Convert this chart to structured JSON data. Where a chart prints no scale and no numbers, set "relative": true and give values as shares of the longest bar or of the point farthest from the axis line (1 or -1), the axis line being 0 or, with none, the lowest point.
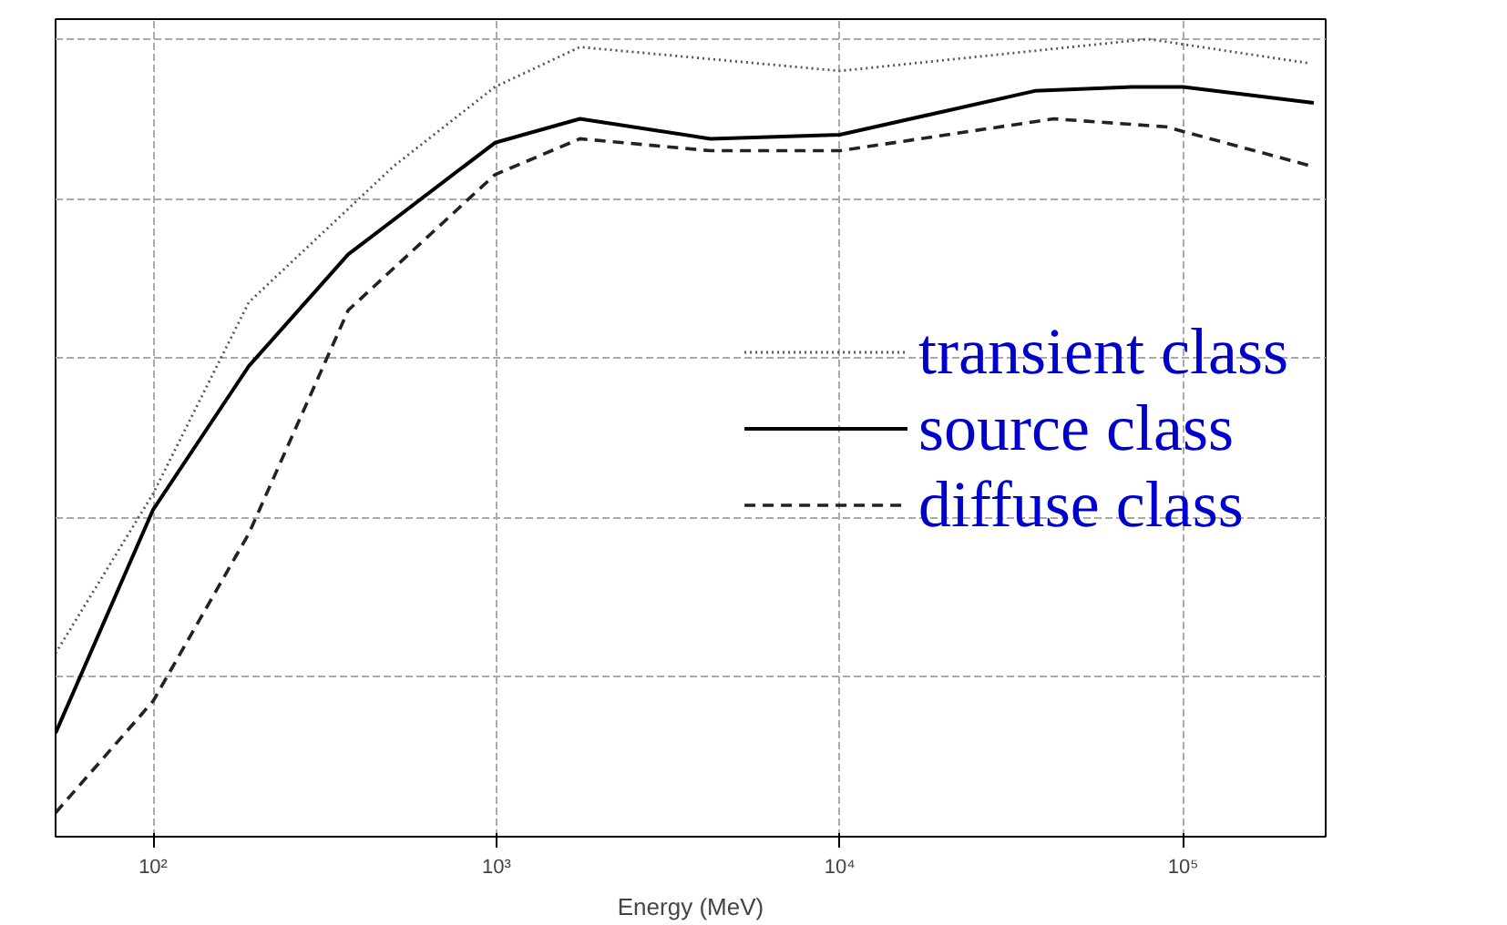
{
  "chart_data": {
    "type": "line",
    "xlabel": "Energy (MeV)",
    "log": "x",
    "relative": true,
    "grid": true,
    "legend": "right",
    "xlim": [
      52,
      260000
    ],
    "xticks": [
      {
        "value": 100,
        "label": "10²"
      },
      {
        "value": 1000,
        "label": "10³"
      },
      {
        "value": 10000,
        "label": "10⁴"
      },
      {
        "value": 100000,
        "label": "10⁵"
      }
    ],
    "series": [
      {
        "name": "transient class",
        "color": "#555555",
        "line_style": "dotted",
        "x": [
          52,
          100,
          190,
          500,
          990,
          1750,
          10000,
          79000,
          230000
        ],
        "values": [
          0.23,
          0.43,
          0.67,
          0.84,
          0.94,
          0.99,
          0.96,
          1.0,
          0.97
        ]
      },
      {
        "name": "source class",
        "color": "#000000",
        "line_style": "solid",
        "x": [
          52,
          100,
          190,
          370,
          990,
          1750,
          4200,
          10000,
          37000,
          71000,
          100000,
          240000
        ],
        "values": [
          0.13,
          0.41,
          0.59,
          0.73,
          0.87,
          0.9,
          0.875,
          0.88,
          0.935,
          0.94,
          0.94,
          0.92
        ]
      },
      {
        "name": "diffuse class",
        "color": "#222222",
        "line_style": "dashed",
        "x": [
          52,
          100,
          190,
          370,
          990,
          1750,
          4200,
          10000,
          42000,
          89000,
          240000
        ],
        "values": [
          0.03,
          0.17,
          0.38,
          0.66,
          0.83,
          0.875,
          0.86,
          0.86,
          0.9,
          0.89,
          0.84
        ]
      }
    ]
  }
}
